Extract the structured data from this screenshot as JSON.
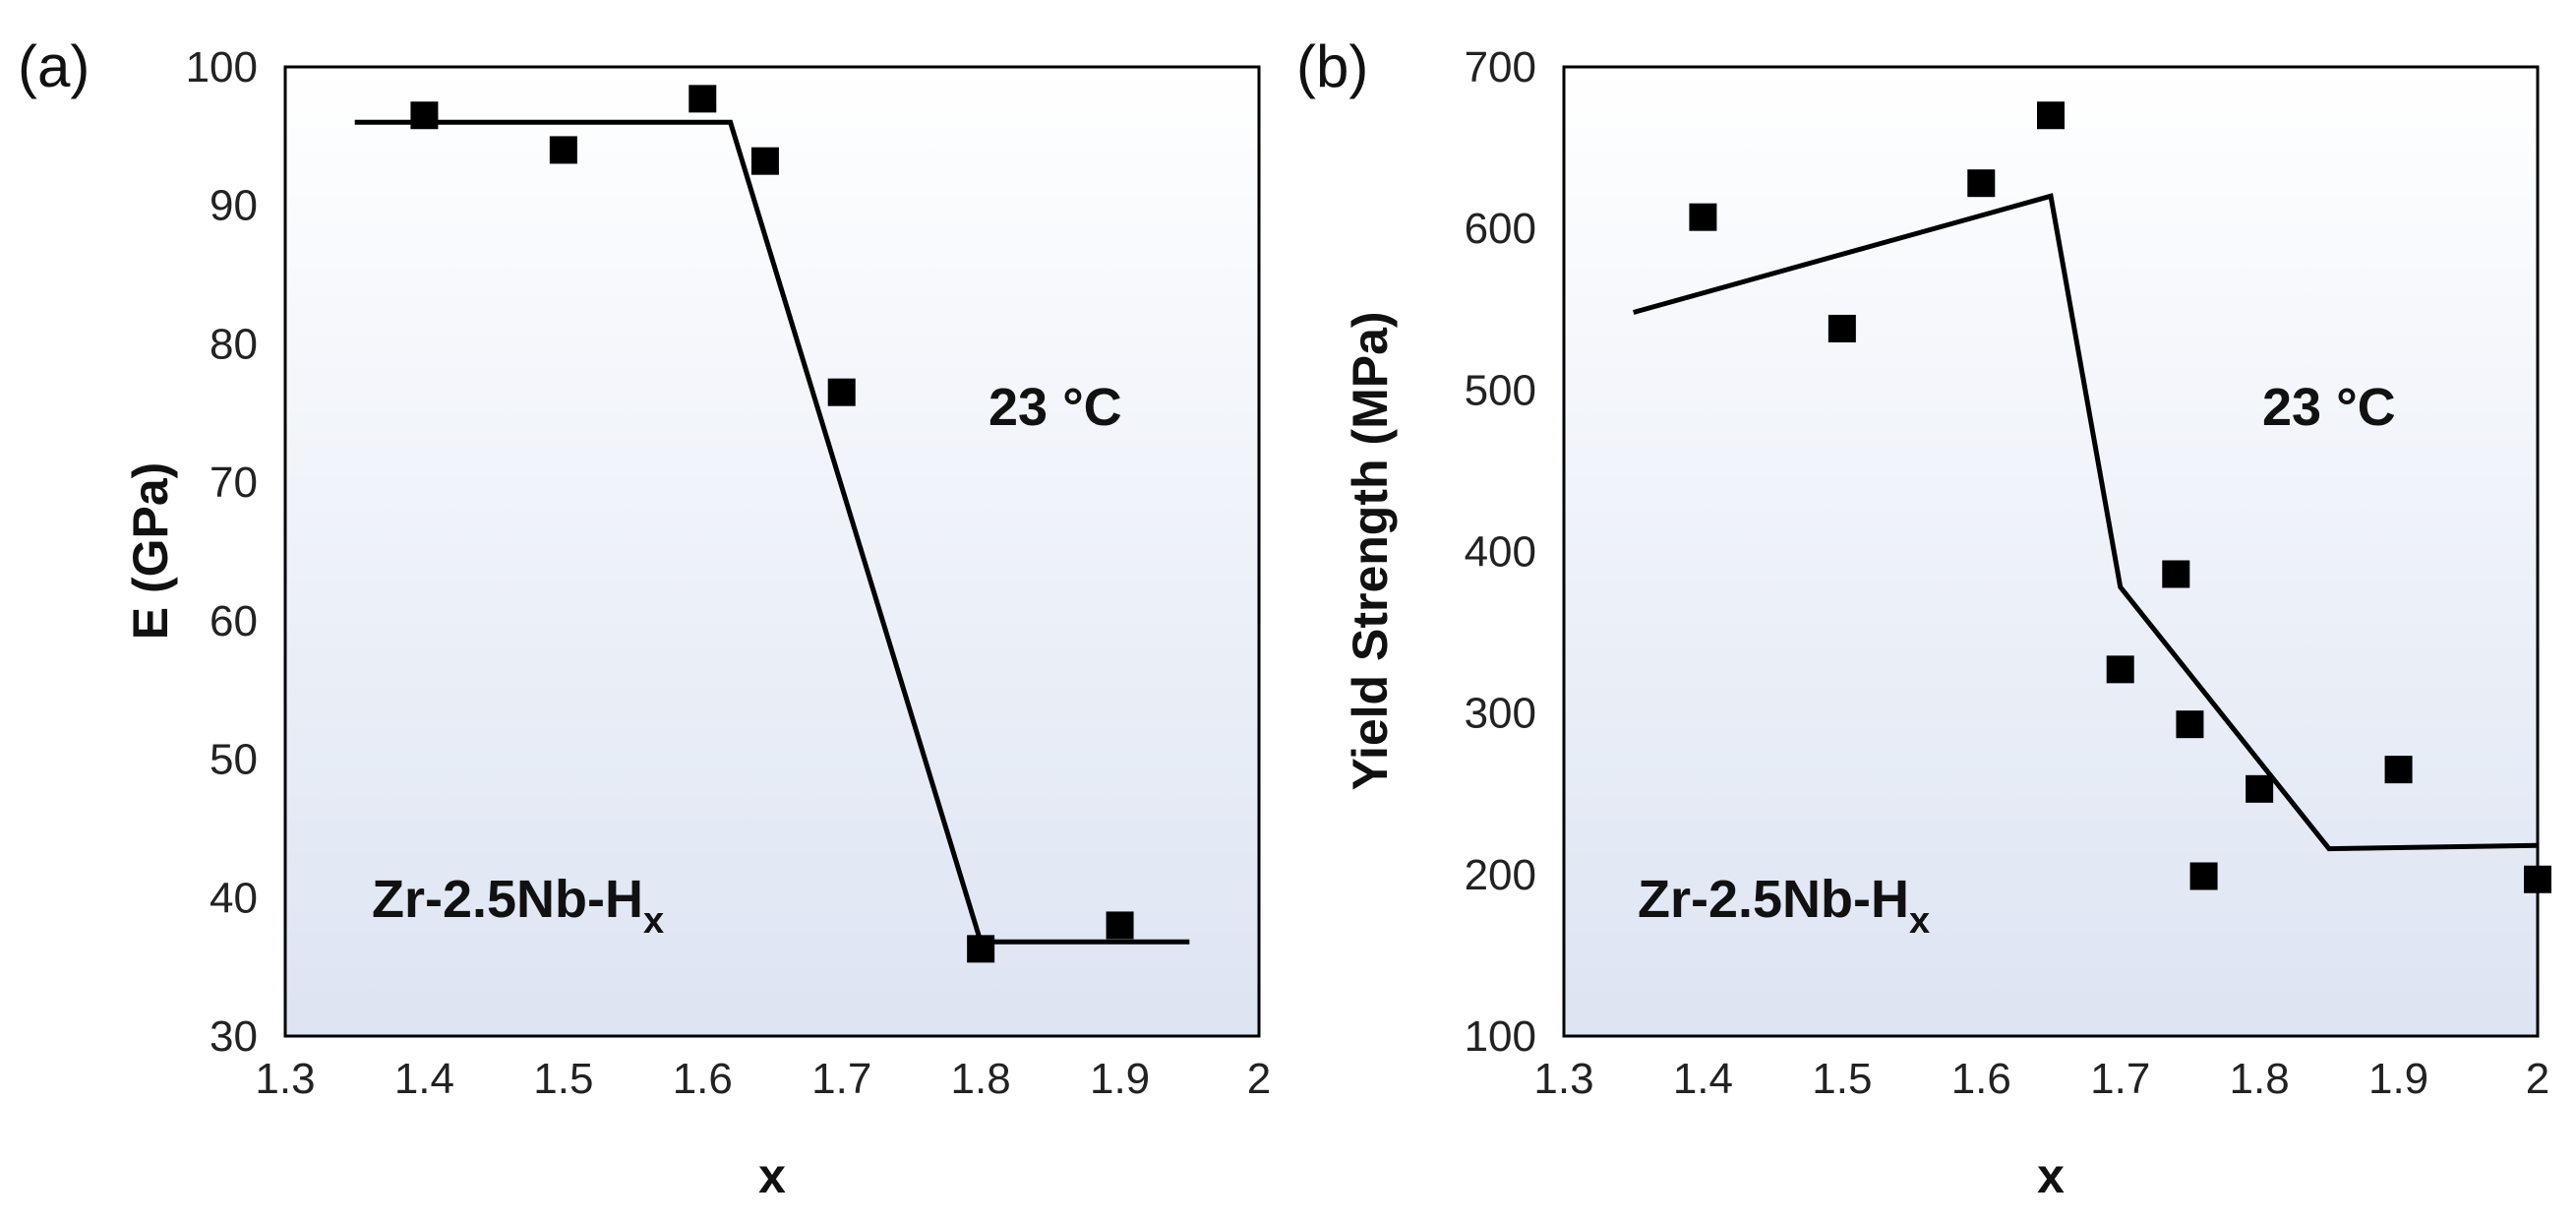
{
  "chart_data": [
    {
      "panel_label": "(a)",
      "type": "scatter",
      "title": "",
      "xlabel": "x",
      "ylabel": "E (GPa)",
      "xlim": [
        1.3,
        2.0
      ],
      "ylim": [
        30,
        100
      ],
      "xticks": [
        "1.3",
        "1.4",
        "1.5",
        "1.6",
        "1.7",
        "1.8",
        "1.9",
        "2"
      ],
      "yticks": [
        "30",
        "40",
        "50",
        "60",
        "70",
        "80",
        "90",
        "100"
      ],
      "grid": false,
      "annotation_temp": "23 °C",
      "annotation_material": {
        "base": "Zr-2.5Nb-H",
        "subscript": "x"
      },
      "series": [
        {
          "name": "data",
          "kind": "markers",
          "x": [
            1.4,
            1.5,
            1.6,
            1.645,
            1.7,
            1.8,
            1.9
          ],
          "y": [
            96.5,
            94.0,
            97.7,
            93.2,
            76.5,
            36.3,
            38.0
          ]
        },
        {
          "name": "fit",
          "kind": "line",
          "x": [
            1.35,
            1.62,
            1.8,
            1.95
          ],
          "y": [
            96.0,
            96.0,
            36.8,
            36.8
          ]
        }
      ]
    },
    {
      "panel_label": "(b)",
      "type": "scatter",
      "title": "",
      "xlabel": "x",
      "ylabel": "Yield Strength (MPa)",
      "xlim": [
        1.3,
        2.0
      ],
      "ylim": [
        100,
        700
      ],
      "xticks": [
        "1.3",
        "1.4",
        "1.5",
        "1.6",
        "1.7",
        "1.8",
        "1.9",
        "2"
      ],
      "yticks": [
        "100",
        "200",
        "300",
        "400",
        "500",
        "600",
        "700"
      ],
      "grid": false,
      "annotation_temp": "23 °C",
      "annotation_material": {
        "base": "Zr-2.5Nb-H",
        "subscript": "x"
      },
      "series": [
        {
          "name": "data",
          "kind": "markers",
          "x": [
            1.4,
            1.5,
            1.6,
            1.65,
            1.7,
            1.74,
            1.75,
            1.76,
            1.8,
            1.9,
            2.0
          ],
          "y": [
            607,
            538,
            628,
            670,
            327,
            386,
            293,
            199,
            253,
            265,
            197
          ]
        },
        {
          "name": "fit",
          "kind": "line",
          "x": [
            1.35,
            1.65,
            1.7,
            1.85,
            2.0
          ],
          "y": [
            548,
            620,
            378,
            216,
            218
          ]
        }
      ]
    }
  ]
}
